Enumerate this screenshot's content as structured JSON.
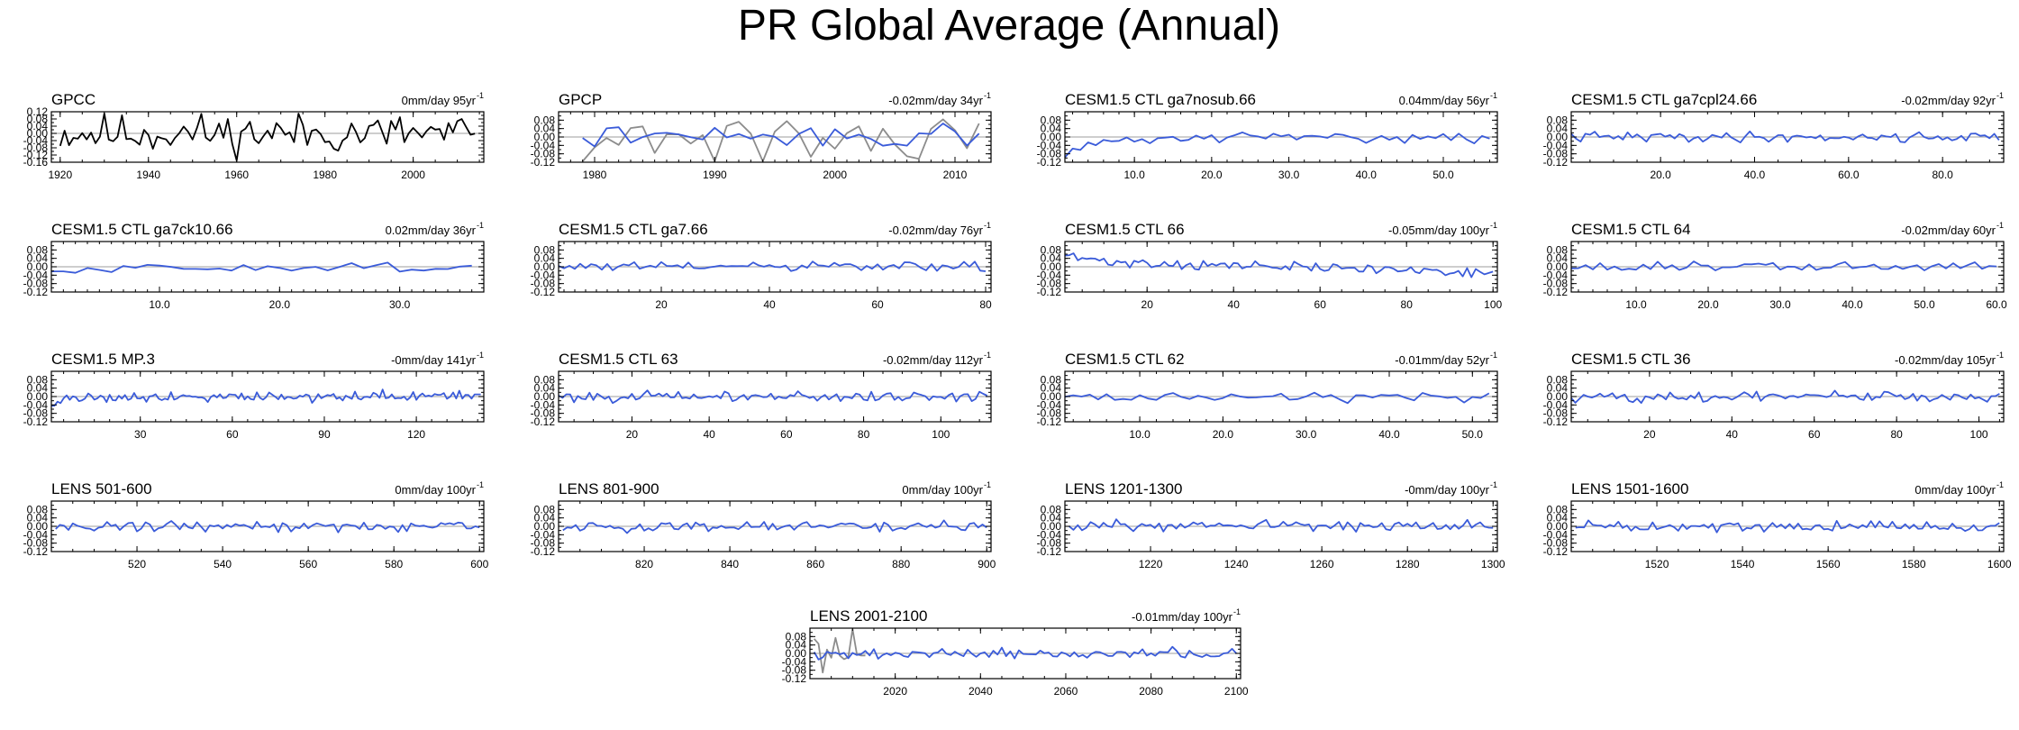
{
  "figure": {
    "title": "PR Global Average (Annual)",
    "colors": {
      "model": "#3a5bd9",
      "obs_primary": "#000000",
      "obs_secondary": "#8c8c8c",
      "zero_line": "#b0b0b0"
    }
  },
  "chart_data": [
    {
      "type": "line",
      "title": "GPCC",
      "trend_value": "0mm/day 95yr",
      "trend_exp": "-1",
      "xlim": [
        1918,
        2016
      ],
      "ylim": [
        -0.16,
        0.12
      ],
      "yticks": [
        "0.12",
        "0.08",
        "0.04",
        "0.00",
        "-0.04",
        "-0.08",
        "-0.12",
        "-0.16"
      ],
      "xticks": [
        1920,
        1940,
        1960,
        1980,
        2000
      ],
      "series": [
        {
          "name": "GPCC",
          "color": "#000000",
          "x_start": 1920,
          "x_end": 2014,
          "n": 95,
          "amp": 0.055,
          "seed": 11
        }
      ]
    },
    {
      "type": "line",
      "title": "GPCP",
      "trend_value": "-0.02mm/day 34yr",
      "trend_exp": "-1",
      "xlim": [
        1977,
        2013
      ],
      "ylim": [
        -0.12,
        0.12
      ],
      "yticks": [
        "0.08",
        "0.04",
        "0.00",
        "-0.04",
        "-0.08",
        "-0.12"
      ],
      "xticks": [
        1980,
        1990,
        2000,
        2010
      ],
      "series": [
        {
          "name": "GPCP obs",
          "color": "#8c8c8c",
          "x_start": 1979,
          "x_end": 2012,
          "n": 34,
          "amp": 0.07,
          "seed": 21
        },
        {
          "name": "model",
          "color": "#3a5bd9",
          "x_start": 1979,
          "x_end": 2012,
          "n": 34,
          "amp": 0.025,
          "seed": 22
        }
      ]
    },
    {
      "type": "line",
      "title": "CESM1.5 CTL ga7nosub.66",
      "trend_value": "0.04mm/day 56yr",
      "trend_exp": "-1",
      "xlim": [
        1,
        57
      ],
      "ylim": [
        -0.12,
        0.12
      ],
      "yticks": [
        "0.08",
        "0.04",
        "0.00",
        "-0.04",
        "-0.08",
        "-0.12"
      ],
      "xticks": [
        "10.0",
        "20.0",
        "30.0",
        "40.0",
        "50.0"
      ],
      "series": [
        {
          "name": "model",
          "color": "#3a5bd9",
          "x_start": 1,
          "x_end": 56,
          "n": 56,
          "amp": 0.012,
          "seed": 31,
          "start_offset": -0.07
        }
      ]
    },
    {
      "type": "line",
      "title": "CESM1.5 CTL ga7cpl24.66",
      "trend_value": "-0.02mm/day 92yr",
      "trend_exp": "-1",
      "xlim": [
        1,
        93
      ],
      "ylim": [
        -0.12,
        0.12
      ],
      "yticks": [
        "0.08",
        "0.04",
        "0.00",
        "-0.04",
        "-0.08",
        "-0.12"
      ],
      "xticks": [
        "20.0",
        "40.0",
        "60.0",
        "80.0"
      ],
      "series": [
        {
          "name": "model",
          "color": "#3a5bd9",
          "x_start": 1,
          "x_end": 92,
          "n": 92,
          "amp": 0.012,
          "seed": 41
        }
      ]
    },
    {
      "type": "line",
      "title": "CESM1.5 CTL ga7ck10.66",
      "trend_value": "0.02mm/day 36yr",
      "trend_exp": "-1",
      "xlim": [
        1,
        37
      ],
      "ylim": [
        -0.12,
        0.12
      ],
      "yticks": [
        "0.08",
        "0.04",
        "0.00",
        "-0.04",
        "-0.08",
        "-0.12"
      ],
      "xticks": [
        "10.0",
        "20.0",
        "30.0"
      ],
      "series": [
        {
          "name": "model",
          "color": "#3a5bd9",
          "x_start": 1,
          "x_end": 36,
          "n": 36,
          "amp": 0.01,
          "seed": 51,
          "start_offset": -0.03
        }
      ]
    },
    {
      "type": "line",
      "title": "CESM1.5 CTL ga7.66",
      "trend_value": "-0.02mm/day 76yr",
      "trend_exp": "-1",
      "xlim": [
        1,
        81
      ],
      "ylim": [
        -0.12,
        0.12
      ],
      "yticks": [
        "0.08",
        "0.04",
        "0.00",
        "-0.04",
        "-0.08",
        "-0.12"
      ],
      "xticks": [
        20,
        40,
        60,
        80
      ],
      "series": [
        {
          "name": "model",
          "color": "#3a5bd9",
          "x_start": 1,
          "x_end": 80,
          "n": 80,
          "amp": 0.012,
          "seed": 61
        }
      ]
    },
    {
      "type": "line",
      "title": "CESM1.5 CTL 66",
      "trend_value": "-0.05mm/day 100yr",
      "trend_exp": "-1",
      "xlim": [
        1,
        101
      ],
      "ylim": [
        -0.12,
        0.12
      ],
      "yticks": [
        "0.08",
        "0.04",
        "0.00",
        "-0.04",
        "-0.08",
        "-0.12"
      ],
      "xticks": [
        20,
        40,
        60,
        80,
        100
      ],
      "series": [
        {
          "name": "model",
          "color": "#3a5bd9",
          "x_start": 1,
          "x_end": 100,
          "n": 100,
          "amp": 0.012,
          "seed": 71,
          "trend": -0.05,
          "start_offset": 0.03
        }
      ]
    },
    {
      "type": "line",
      "title": "CESM1.5 CTL 64",
      "trend_value": "-0.02mm/day 60yr",
      "trend_exp": "-1",
      "xlim": [
        1,
        61
      ],
      "ylim": [
        -0.12,
        0.12
      ],
      "yticks": [
        "0.08",
        "0.04",
        "0.00",
        "-0.04",
        "-0.08",
        "-0.12"
      ],
      "xticks": [
        "10.0",
        "20.0",
        "30.0",
        "40.0",
        "50.0",
        "60.0"
      ],
      "series": [
        {
          "name": "model",
          "color": "#3a5bd9",
          "x_start": 1,
          "x_end": 60,
          "n": 60,
          "amp": 0.012,
          "seed": 81
        }
      ]
    },
    {
      "type": "line",
      "title": "CESM1.5 MP.3",
      "trend_value": "-0mm/day 141yr",
      "trend_exp": "-1",
      "xlim": [
        1,
        142
      ],
      "ylim": [
        -0.12,
        0.12
      ],
      "yticks": [
        "0.08",
        "0.04",
        "0.00",
        "-0.04",
        "-0.08",
        "-0.12"
      ],
      "xticks": [
        30,
        60,
        90,
        120
      ],
      "series": [
        {
          "name": "model",
          "color": "#3a5bd9",
          "x_start": 1,
          "x_end": 141,
          "n": 141,
          "amp": 0.012,
          "seed": 91,
          "start_offset": -0.03
        }
      ]
    },
    {
      "type": "line",
      "title": "CESM1.5 CTL 63",
      "trend_value": "-0.02mm/day 112yr",
      "trend_exp": "-1",
      "xlim": [
        1,
        113
      ],
      "ylim": [
        -0.12,
        0.12
      ],
      "yticks": [
        "0.08",
        "0.04",
        "0.00",
        "-0.04",
        "-0.08",
        "-0.12"
      ],
      "xticks": [
        20,
        40,
        60,
        80,
        100
      ],
      "series": [
        {
          "name": "model",
          "color": "#3a5bd9",
          "x_start": 1,
          "x_end": 112,
          "n": 112,
          "amp": 0.012,
          "seed": 101
        }
      ]
    },
    {
      "type": "line",
      "title": "CESM1.5 CTL 62",
      "trend_value": "-0.01mm/day 52yr",
      "trend_exp": "-1",
      "xlim": [
        1,
        53
      ],
      "ylim": [
        -0.12,
        0.12
      ],
      "yticks": [
        "0.08",
        "0.04",
        "0.00",
        "-0.04",
        "-0.08",
        "-0.12"
      ],
      "xticks": [
        "10.0",
        "20.0",
        "30.0",
        "40.0",
        "50.0"
      ],
      "series": [
        {
          "name": "model",
          "color": "#3a5bd9",
          "x_start": 1,
          "x_end": 52,
          "n": 52,
          "amp": 0.012,
          "seed": 111
        }
      ]
    },
    {
      "type": "line",
      "title": "CESM1.5 CTL 36",
      "trend_value": "-0.02mm/day 105yr",
      "trend_exp": "-1",
      "xlim": [
        1,
        106
      ],
      "ylim": [
        -0.12,
        0.12
      ],
      "yticks": [
        "0.08",
        "0.04",
        "0.00",
        "-0.04",
        "-0.08",
        "-0.12"
      ],
      "xticks": [
        20,
        40,
        60,
        80,
        100
      ],
      "series": [
        {
          "name": "model",
          "color": "#3a5bd9",
          "x_start": 1,
          "x_end": 105,
          "n": 105,
          "amp": 0.012,
          "seed": 121
        }
      ]
    },
    {
      "type": "line",
      "title": "LENS 501-600",
      "trend_value": "0mm/day 100yr",
      "trend_exp": "-1",
      "xlim": [
        500,
        601
      ],
      "ylim": [
        -0.12,
        0.12
      ],
      "yticks": [
        "0.08",
        "0.04",
        "0.00",
        "-0.04",
        "-0.08",
        "-0.12"
      ],
      "xticks": [
        520,
        540,
        560,
        580,
        600
      ],
      "series": [
        {
          "name": "model",
          "color": "#3a5bd9",
          "x_start": 501,
          "x_end": 600,
          "n": 100,
          "amp": 0.012,
          "seed": 131
        }
      ]
    },
    {
      "type": "line",
      "title": "LENS 801-900",
      "trend_value": "0mm/day 100yr",
      "trend_exp": "-1",
      "xlim": [
        800,
        901
      ],
      "ylim": [
        -0.12,
        0.12
      ],
      "yticks": [
        "0.08",
        "0.04",
        "0.00",
        "-0.04",
        "-0.08",
        "-0.12"
      ],
      "xticks": [
        820,
        840,
        860,
        880,
        900
      ],
      "series": [
        {
          "name": "model",
          "color": "#3a5bd9",
          "x_start": 801,
          "x_end": 900,
          "n": 100,
          "amp": 0.012,
          "seed": 141
        }
      ]
    },
    {
      "type": "line",
      "title": "LENS 1201-1300",
      "trend_value": "-0mm/day 100yr",
      "trend_exp": "-1",
      "xlim": [
        1200,
        1301
      ],
      "ylim": [
        -0.12,
        0.12
      ],
      "yticks": [
        "0.08",
        "0.04",
        "0.00",
        "-0.04",
        "-0.08",
        "-0.12"
      ],
      "xticks": [
        1220,
        1240,
        1260,
        1280,
        1300
      ],
      "series": [
        {
          "name": "model",
          "color": "#3a5bd9",
          "x_start": 1201,
          "x_end": 1300,
          "n": 100,
          "amp": 0.012,
          "seed": 151
        }
      ]
    },
    {
      "type": "line",
      "title": "LENS 1501-1600",
      "trend_value": "0mm/day 100yr",
      "trend_exp": "-1",
      "xlim": [
        1500,
        1601
      ],
      "ylim": [
        -0.12,
        0.12
      ],
      "yticks": [
        "0.08",
        "0.04",
        "0.00",
        "-0.04",
        "-0.08",
        "-0.12"
      ],
      "xticks": [
        1520,
        1540,
        1560,
        1580,
        1600
      ],
      "series": [
        {
          "name": "model",
          "color": "#3a5bd9",
          "x_start": 1501,
          "x_end": 1600,
          "n": 100,
          "amp": 0.012,
          "seed": 161
        }
      ]
    },
    {
      "type": "line",
      "title": "LENS 2001-2100",
      "trend_value": "-0.01mm/day 100yr",
      "trend_exp": "-1",
      "xlim": [
        2000,
        2101
      ],
      "ylim": [
        -0.12,
        0.12
      ],
      "yticks": [
        "0.08",
        "0.04",
        "0.00",
        "-0.04",
        "-0.08",
        "-0.12"
      ],
      "xticks": [
        2020,
        2040,
        2060,
        2080,
        2100
      ],
      "series": [
        {
          "name": "obs",
          "color": "#8c8c8c",
          "x_start": 2001,
          "x_end": 2013,
          "n": 13,
          "amp": 0.07,
          "seed": 171
        },
        {
          "name": "model",
          "color": "#3a5bd9",
          "x_start": 2001,
          "x_end": 2100,
          "n": 100,
          "amp": 0.012,
          "seed": 172
        }
      ]
    }
  ]
}
